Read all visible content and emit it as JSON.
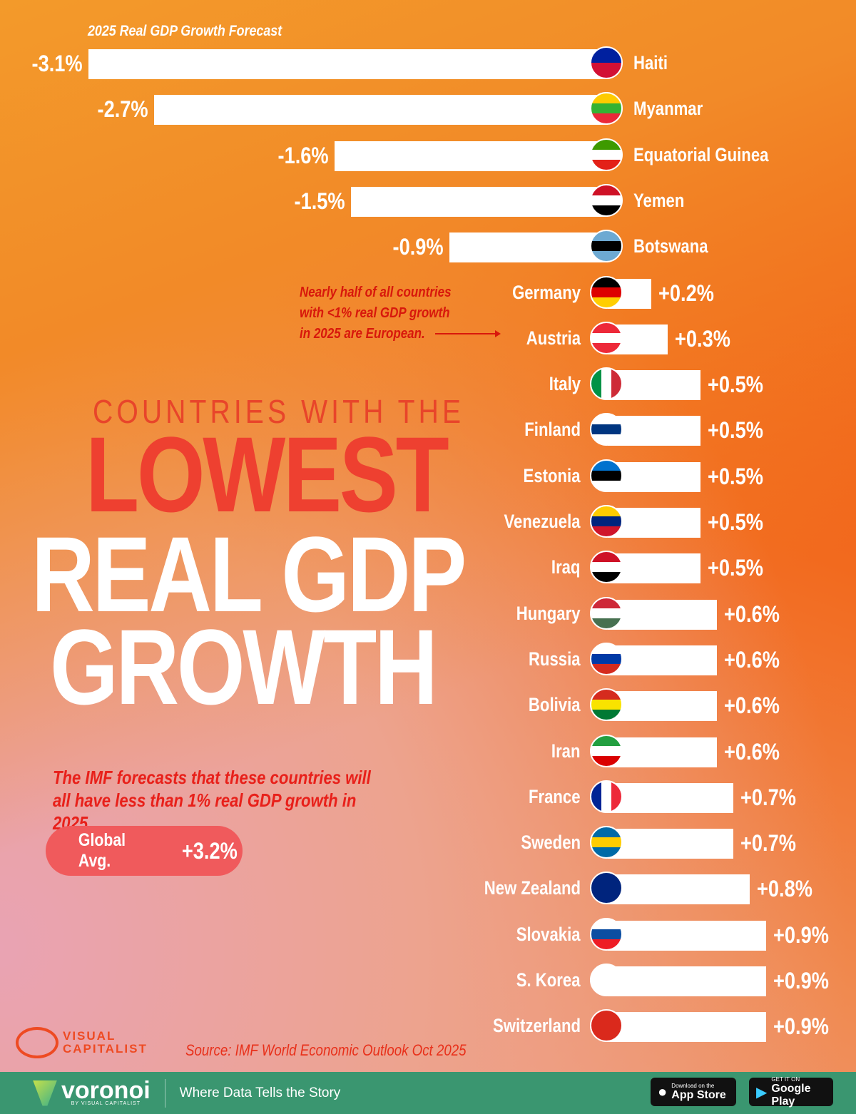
{
  "chart_data": {
    "type": "bar",
    "orientation": "horizontal",
    "title": "2025 Real GDP Growth Forecast",
    "categories": [
      "Haiti",
      "Myanmar",
      "Equatorial Guinea",
      "Yemen",
      "Botswana",
      "Germany",
      "Austria",
      "Italy",
      "Finland",
      "Estonia",
      "Venezuela",
      "Iraq",
      "Hungary",
      "Russia",
      "Bolivia",
      "Iran",
      "France",
      "Sweden",
      "New Zealand",
      "Slovakia",
      "S. Korea",
      "Switzerland"
    ],
    "values": [
      -3.1,
      -2.7,
      -1.6,
      -1.5,
      -0.9,
      0.2,
      0.3,
      0.5,
      0.5,
      0.5,
      0.5,
      0.5,
      0.6,
      0.6,
      0.6,
      0.6,
      0.7,
      0.7,
      0.8,
      0.9,
      0.9,
      0.9
    ],
    "labels": [
      "-3.1%",
      "-2.7%",
      "-1.6%",
      "-1.5%",
      "-0.9%",
      "+0.2%",
      "+0.3%",
      "+0.5%",
      "+0.5%",
      "+0.5%",
      "+0.5%",
      "+0.5%",
      "+0.6%",
      "+0.6%",
      "+0.6%",
      "+0.6%",
      "+0.7%",
      "+0.7%",
      "+0.8%",
      "+0.9%",
      "+0.9%",
      "+0.9%"
    ],
    "bar_color": "#ffffff",
    "flags": [
      [
        "#00209f",
        "#d21034"
      ],
      [
        "#fecb00",
        "#34b233",
        "#ea2839"
      ],
      [
        "#3e9a00",
        "#ffffff",
        "#e32118"
      ],
      [
        "#ce1126",
        "#ffffff",
        "#000000"
      ],
      [
        "#6da9d2",
        "#000000",
        "#6da9d2"
      ],
      [
        "#000000",
        "#dd0000",
        "#ffce00"
      ],
      [
        "#ed2939",
        "#ffffff",
        "#ed2939"
      ],
      [
        "#009246",
        "#ffffff",
        "#ce2b37"
      ],
      [
        "#ffffff",
        "#003580",
        "#ffffff"
      ],
      [
        "#0072ce",
        "#000000",
        "#ffffff"
      ],
      [
        "#ffcc00",
        "#00247d",
        "#cf142b"
      ],
      [
        "#ce1126",
        "#ffffff",
        "#000000"
      ],
      [
        "#ce2939",
        "#ffffff",
        "#477050"
      ],
      [
        "#ffffff",
        "#0039a6",
        "#d52b1e"
      ],
      [
        "#d52b1e",
        "#f9e300",
        "#007934"
      ],
      [
        "#239f40",
        "#ffffff",
        "#da0000"
      ],
      [
        "#002395",
        "#ffffff",
        "#ed2939"
      ],
      [
        "#006aa7",
        "#fecc00",
        "#006aa7"
      ],
      [
        "#00247d",
        "#00247d"
      ],
      [
        "#ffffff",
        "#0b4ea2",
        "#ee1c25"
      ],
      [
        "#ffffff",
        "#ffffff"
      ],
      [
        "#da291c",
        "#da291c"
      ]
    ],
    "flag_direction": [
      "h",
      "h",
      "h",
      "h",
      "h",
      "h",
      "h",
      "v",
      "h",
      "h",
      "h",
      "h",
      "h",
      "h",
      "h",
      "h",
      "v",
      "h",
      "h",
      "h",
      "h",
      "h"
    ]
  },
  "annotation": "Nearly half of all countries with <1% real GDP growth in 2025 are European.",
  "headline": {
    "line1": "COUNTRIES WITH THE",
    "line2": "LOWEST",
    "line3": "REAL GDP",
    "line4": "GROWTH"
  },
  "description": "The IMF forecasts that these countries will all have less than 1% real GDP growth in 2025.",
  "global_avg": {
    "label": "Global Avg.",
    "value": "+3.2%"
  },
  "logo": {
    "line1": "VISUAL",
    "line2": "CAPITALIST"
  },
  "source": "Source: IMF World Economic Outlook Oct 2025",
  "footer": {
    "brand": "voronoi",
    "brand_sub": "BY VISUAL CAPITALIST",
    "tagline": "Where Data Tells the Story",
    "app_store_small": "Download on the",
    "app_store": "App Store",
    "google_small": "GET IT ON",
    "google": "Google Play"
  },
  "colors": {
    "accent_red": "#ee4030",
    "footer_green": "#3a9670"
  }
}
